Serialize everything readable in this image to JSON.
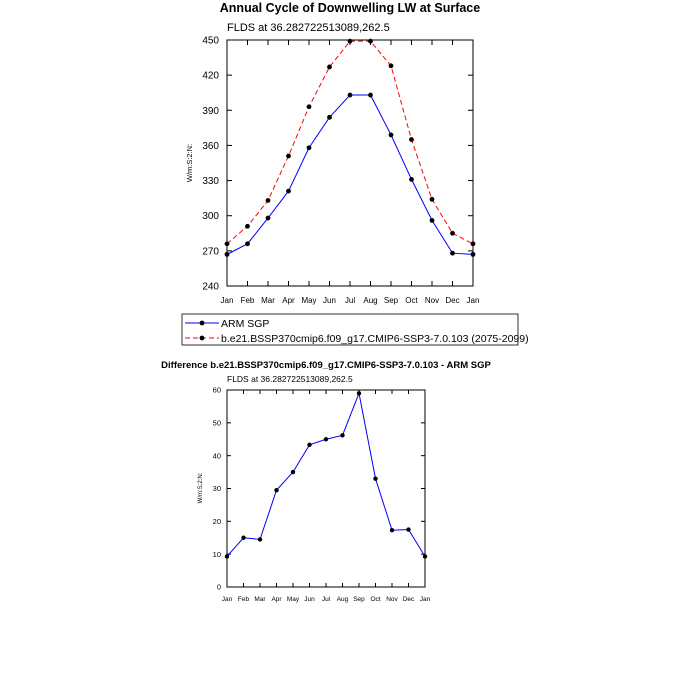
{
  "chart_data": [
    {
      "type": "line",
      "title": "Annual Cycle of Downwelling LW at Surface",
      "subtitle": "FLDS at 36.282722513089,262.5",
      "ylabel": "W/m:S:2:N:",
      "xlabel": "",
      "ylim": [
        240,
        450
      ],
      "yticks": [
        240,
        270,
        300,
        330,
        360,
        390,
        420,
        450
      ],
      "categories": [
        "Jan",
        "Feb",
        "Mar",
        "Apr",
        "May",
        "Jun",
        "Jul",
        "Aug",
        "Sep",
        "Oct",
        "Nov",
        "Dec",
        "Jan"
      ],
      "series": [
        {
          "name": "ARM SGP",
          "color": "#0000ff",
          "dash": "solid",
          "values": [
            267,
            276,
            298,
            321,
            358,
            384,
            403,
            403,
            369,
            331,
            296,
            268,
            267
          ]
        },
        {
          "name": "b.e21.BSSP370cmip6.f09_g17.CMIP6-SSP3-7.0.103 (2075-2099)",
          "color": "#ff0000",
          "dash": "dashed",
          "values": [
            276,
            291,
            313,
            351,
            393,
            427,
            449,
            449,
            428,
            365,
            314,
            285,
            276
          ]
        }
      ],
      "legend": "bottom"
    },
    {
      "type": "line",
      "title": "Difference b.e21.BSSP370cmip6.f09_g17.CMIP6-SSP3-7.0.103 - ARM SGP",
      "subtitle": "FLDS at 36.282722513089,262.5",
      "ylabel": "W/m:S:2:N:",
      "xlabel": "",
      "ylim": [
        0,
        60
      ],
      "yticks": [
        0,
        10,
        20,
        30,
        40,
        50,
        60
      ],
      "categories": [
        "Jan",
        "Feb",
        "Mar",
        "Apr",
        "May",
        "Jun",
        "Jul",
        "Aug",
        "Sep",
        "Oct",
        "Nov",
        "Dec",
        "Jan"
      ],
      "series": [
        {
          "name": "Difference",
          "color": "#0000ff",
          "dash": "solid",
          "values": [
            9.3,
            15.0,
            14.5,
            29.5,
            35.0,
            43.3,
            45.0,
            46.2,
            59.0,
            33.0,
            17.3,
            17.5,
            9.3
          ]
        }
      ]
    }
  ]
}
